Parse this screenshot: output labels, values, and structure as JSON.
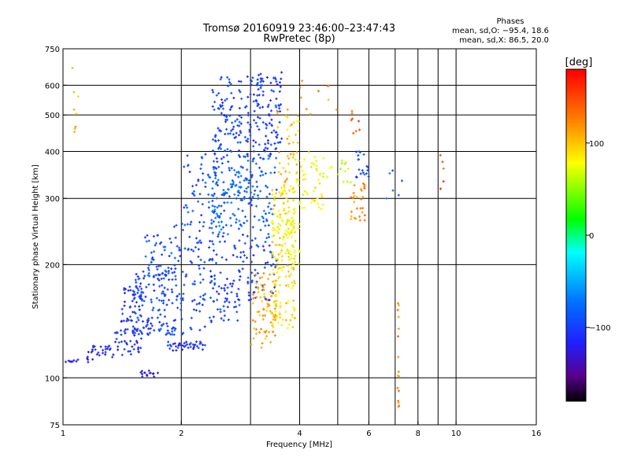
{
  "chart_data": {
    "type": "scatter",
    "title": "Tromsø 20160919 23:46:00–23:47:43",
    "subtitle": "RwPretec (8p)",
    "xlabel": "Frequency [MHz]",
    "ylabel": "Stationary phase Virtual Height [km]",
    "x_scale": "log",
    "y_scale": "log",
    "xlim": [
      1,
      16
    ],
    "ylim": [
      75,
      750
    ],
    "x_ticks": [
      "1",
      "2",
      "4",
      "6",
      "8",
      "10",
      "16"
    ],
    "x_tick_values": [
      1,
      2,
      4,
      6,
      8,
      10,
      16
    ],
    "y_ticks": [
      "75",
      "100",
      "200",
      "300",
      "400",
      "500",
      "600",
      "750"
    ],
    "y_tick_values": [
      75,
      100,
      200,
      300,
      400,
      500,
      600,
      750
    ],
    "grid": true,
    "stats": {
      "heading": "Phases",
      "line_o": "mean, sd,O: −95.4, 18.6",
      "line_x": "mean, sd,X:  86.5, 20.0"
    },
    "colorbar": {
      "unit": "[deg]",
      "range": [
        -180,
        180
      ],
      "ticks": [
        "100",
        "0",
        "−100"
      ],
      "tick_values": [
        100,
        0,
        -100
      ]
    },
    "clusters": [
      {
        "x": [
          1.02,
          1.1
        ],
        "y": [
          110,
          112
        ],
        "phase": -110,
        "n": 8,
        "shape": "trace"
      },
      {
        "x": [
          1.15,
          1.35
        ],
        "y": [
          110,
          122
        ],
        "phase": -115,
        "n": 30
      },
      {
        "x": [
          1.35,
          1.6
        ],
        "y": [
          115,
          135
        ],
        "phase": -110,
        "n": 40
      },
      {
        "x": [
          1.4,
          1.6
        ],
        "y": [
          135,
          175
        ],
        "phase": -105,
        "n": 45
      },
      {
        "x": [
          1.55,
          1.75
        ],
        "y": [
          100,
          105
        ],
        "phase": -120,
        "n": 15
      },
      {
        "x": [
          1.5,
          1.85
        ],
        "y": [
          130,
          190
        ],
        "phase": -100,
        "n": 110
      },
      {
        "x": [
          1.6,
          1.9
        ],
        "y": [
          185,
          240
        ],
        "phase": -90,
        "n": 45
      },
      {
        "x": [
          1.85,
          2.3
        ],
        "y": [
          118,
          125
        ],
        "phase": -105,
        "n": 40,
        "shape": "trace"
      },
      {
        "x": [
          1.85,
          2.3
        ],
        "y": [
          130,
          260
        ],
        "phase": -95,
        "n": 110
      },
      {
        "x": [
          2.0,
          2.5
        ],
        "y": [
          250,
          400
        ],
        "phase": -90,
        "n": 50
      },
      {
        "x": [
          2.35,
          2.85
        ],
        "y": [
          140,
          240
        ],
        "phase": -100,
        "n": 90
      },
      {
        "x": [
          2.35,
          2.85
        ],
        "y": [
          240,
          360
        ],
        "phase": -80,
        "n": 100
      },
      {
        "x": [
          2.4,
          2.85
        ],
        "y": [
          360,
          630
        ],
        "phase": -95,
        "n": 110
      },
      {
        "x": [
          2.85,
          3.5
        ],
        "y": [
          160,
          260
        ],
        "phase": -95,
        "n": 70
      },
      {
        "x": [
          2.85,
          3.5
        ],
        "y": [
          260,
          400
        ],
        "phase": -85,
        "n": 90
      },
      {
        "x": [
          2.9,
          3.6
        ],
        "y": [
          400,
          640
        ],
        "phase": -100,
        "n": 110
      },
      {
        "x": [
          3.0,
          3.5
        ],
        "y": [
          120,
          190
        ],
        "phase": 110,
        "n": 80
      },
      {
        "x": [
          3.4,
          3.9
        ],
        "y": [
          135,
          240
        ],
        "phase": 90,
        "n": 110
      },
      {
        "x": [
          3.4,
          3.9
        ],
        "y": [
          240,
          320
        ],
        "phase": 85,
        "n": 80
      },
      {
        "x": [
          3.5,
          4.0
        ],
        "y": [
          320,
          520
        ],
        "phase": 100,
        "n": 45
      },
      {
        "x": [
          3.6,
          4.0
        ],
        "y": [
          200,
          270
        ],
        "phase": 80,
        "n": 30
      },
      {
        "x": [
          3.9,
          4.6
        ],
        "y": [
          280,
          400
        ],
        "phase": 80,
        "n": 45
      },
      {
        "x": [
          4.0,
          5.0
        ],
        "y": [
          500,
          620
        ],
        "phase": 120,
        "n": 10
      },
      {
        "x": [
          4.4,
          5.4
        ],
        "y": [
          330,
          380
        ],
        "phase": 70,
        "n": 20
      },
      {
        "x": [
          5.4,
          5.9
        ],
        "y": [
          260,
          330
        ],
        "phase": 120,
        "n": 30
      },
      {
        "x": [
          5.5,
          6.0
        ],
        "y": [
          340,
          400
        ],
        "phase": -90,
        "n": 20
      },
      {
        "x": [
          5.4,
          5.7
        ],
        "y": [
          420,
          520
        ],
        "phase": 140,
        "n": 8
      },
      {
        "x": [
          6.6,
          7.3
        ],
        "y": [
          300,
          360
        ],
        "phase": -80,
        "n": 6
      },
      {
        "x": [
          7.1,
          7.3
        ],
        "y": [
          80,
          160
        ],
        "phase": 125,
        "n": 16,
        "shape": "column"
      },
      {
        "x": [
          9.1,
          9.3
        ],
        "y": [
          310,
          420
        ],
        "phase": 150,
        "n": 5
      },
      {
        "x": [
          1.05,
          1.1
        ],
        "y": [
          450,
          680
        ],
        "phase": 110,
        "n": 8
      },
      {
        "x": [
          3.0,
          3.6
        ],
        "y": [
          600,
          650
        ],
        "phase": -100,
        "n": 12
      }
    ]
  }
}
